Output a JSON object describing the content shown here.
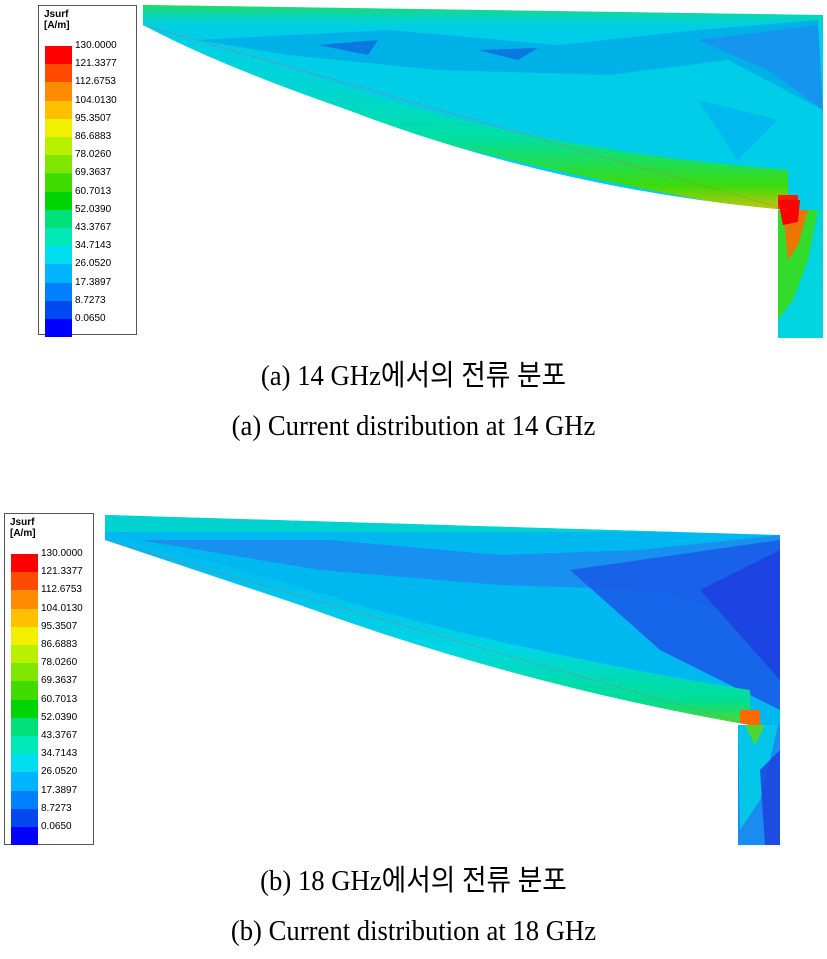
{
  "colorbar": {
    "title": "Jsurf",
    "unit": "[A/m]",
    "levels": [
      "130.0000",
      "121.3377",
      "112.6753",
      "104.0130",
      "95.3507",
      "86.6883",
      "78.0260",
      "69.3637",
      "60.7013",
      "52.0390",
      "43.3767",
      "34.7143",
      "26.0520",
      "17.3897",
      "8.7273",
      "0.0650"
    ],
    "colors": [
      "#ff0000",
      "#ff4a00",
      "#ff8c00",
      "#ffc000",
      "#f0f000",
      "#b8f000",
      "#7ee600",
      "#40dc00",
      "#00d400",
      "#00e078",
      "#00e8b8",
      "#00dcf0",
      "#00b4ff",
      "#0080ff",
      "#0048f0",
      "#0000ff"
    ]
  },
  "panels": [
    {
      "legend_title": "Jsurf",
      "legend_unit": "[A/m]",
      "caption_ko": "(a)  14  GHz에서의  전류  분포",
      "caption_en": "(a)  Current  distribution  at  14  GHz"
    },
    {
      "legend_title": "Jsurf",
      "legend_unit": "[A/m]",
      "caption_ko": "(b)  18  GHz에서의  전류  분포",
      "caption_en": "(b)  Current  distribution  at  18  GHz"
    }
  ]
}
